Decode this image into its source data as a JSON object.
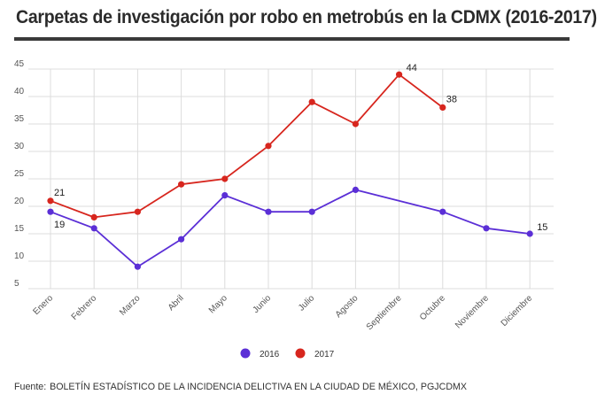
{
  "title": "Carpetas de investigación por robo en metrobús en la CDMX (2016-2017)",
  "source": {
    "label": "Fuente:",
    "text": "BOLETÍN ESTADÍSTICO DE LA INCIDENCIA DELICTIVA EN LA CIUDAD DE MÉXICO, PGJCDMX"
  },
  "chart_data": {
    "type": "line",
    "categories": [
      "Enero",
      "Febrero",
      "Marzo",
      "Abril",
      "Mayo",
      "Junio",
      "Julio",
      "Agosto",
      "Septiembre",
      "Octubre",
      "Noviembre",
      "Diciembre"
    ],
    "series": [
      {
        "name": "2016",
        "color": "#5b2fd6",
        "values": [
          19,
          16,
          9,
          14,
          22,
          19,
          19,
          23,
          null,
          19,
          16,
          15
        ]
      },
      {
        "name": "2017",
        "color": "#d7261e",
        "values": [
          21,
          18,
          19,
          24,
          25,
          31,
          39,
          35,
          44,
          38,
          null,
          null
        ]
      }
    ],
    "data_labels": [
      {
        "series": "2017",
        "category": "Enero",
        "text": "21"
      },
      {
        "series": "2016",
        "category": "Enero",
        "text": "19"
      },
      {
        "series": "2017",
        "category": "Septiembre",
        "text": "44"
      },
      {
        "series": "2017",
        "category": "Octubre",
        "text": "38"
      },
      {
        "series": "2016",
        "category": "Diciembre",
        "text": "15"
      }
    ],
    "yticks": [
      5,
      10,
      15,
      20,
      25,
      30,
      35,
      40,
      45
    ],
    "ylim": [
      5,
      45
    ],
    "grid": true,
    "legend": "bottom-center"
  }
}
